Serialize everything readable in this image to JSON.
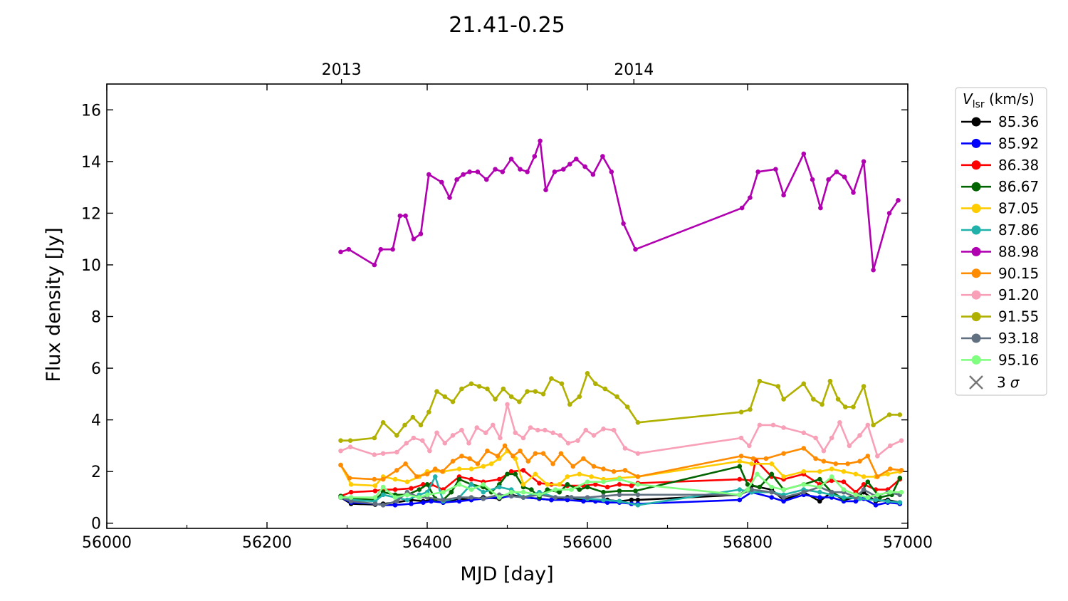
{
  "chart_data": {
    "type": "line",
    "title": "21.41-0.25",
    "xlabel": "MJD [day]",
    "ylabel": "Flux density [Jy]",
    "xlim": [
      56000,
      57000
    ],
    "ylim": [
      -0.2,
      17
    ],
    "xticks": [
      56000,
      56200,
      56400,
      56600,
      56800,
      57000
    ],
    "xticks_minor": [
      56100,
      56300,
      56500,
      56700,
      56900
    ],
    "yticks": [
      0,
      2,
      4,
      6,
      8,
      10,
      12,
      14,
      16
    ],
    "top_axis": {
      "ticks": [
        {
          "label": "2013",
          "x": 56293
        },
        {
          "label": "2014",
          "x": 56658
        }
      ]
    },
    "grid": false,
    "legend": {
      "title": "V_lsr (km/s)",
      "title_main": "V",
      "title_sub": "lsr",
      "title_rest": " (km/s)",
      "placement": "outside-right",
      "marker_label": "3 σ",
      "marker_label_num": "3",
      "marker_label_sym": "σ"
    },
    "series": [
      {
        "name": "85.36",
        "color": "#000000",
        "x": [
          56292,
          56305,
          56335,
          56345,
          56360,
          56380,
          56395,
          56405,
          56420,
          56440,
          56455,
          56470,
          56490,
          56505,
          56520,
          56540,
          56555,
          56575,
          56595,
          56610,
          56625,
          56640,
          56655,
          56663,
          56790,
          56805,
          56830,
          56845,
          56870,
          56890,
          56905,
          56920,
          56935,
          56945,
          56960,
          56975,
          56990
        ],
        "y": [
          1.0,
          0.75,
          0.72,
          0.75,
          0.8,
          0.9,
          0.85,
          0.9,
          0.8,
          0.95,
          0.9,
          1.0,
          0.95,
          1.1,
          1.0,
          0.95,
          0.9,
          1.0,
          0.9,
          0.85,
          0.9,
          0.85,
          0.9,
          0.9,
          1.1,
          1.45,
          1.3,
          0.9,
          1.2,
          0.85,
          1.2,
          0.9,
          1.0,
          1.2,
          0.85,
          0.9,
          0.8
        ]
      },
      {
        "name": "85.92",
        "color": "#0000ff",
        "x": [
          56292,
          56305,
          56335,
          56345,
          56360,
          56380,
          56395,
          56405,
          56420,
          56440,
          56455,
          56470,
          56490,
          56505,
          56520,
          56540,
          56555,
          56575,
          56595,
          56610,
          56625,
          56640,
          56655,
          56663,
          56790,
          56805,
          56830,
          56845,
          56870,
          56890,
          56905,
          56920,
          56935,
          56945,
          56960,
          56975,
          56990
        ],
        "y": [
          1.0,
          0.8,
          0.75,
          0.7,
          0.7,
          0.75,
          0.8,
          0.85,
          0.8,
          0.85,
          0.9,
          0.95,
          1.0,
          1.05,
          1.0,
          0.95,
          0.9,
          0.9,
          0.85,
          0.85,
          0.8,
          0.8,
          0.75,
          0.75,
          0.9,
          1.2,
          1.0,
          0.85,
          1.1,
          1.0,
          1.0,
          0.85,
          0.85,
          0.95,
          0.7,
          0.8,
          0.75
        ]
      },
      {
        "name": "86.38",
        "color": "#ff0000",
        "x": [
          56292,
          56305,
          56335,
          56345,
          56360,
          56380,
          56395,
          56405,
          56420,
          56440,
          56455,
          56470,
          56490,
          56505,
          56520,
          56540,
          56555,
          56575,
          56595,
          56610,
          56625,
          56640,
          56655,
          56663,
          56790,
          56805,
          56810,
          56830,
          56845,
          56870,
          56890,
          56905,
          56920,
          56935,
          56945,
          56960,
          56975,
          56990
        ],
        "y": [
          1.05,
          1.2,
          1.25,
          1.3,
          1.3,
          1.35,
          1.5,
          1.5,
          1.3,
          1.8,
          1.7,
          1.6,
          1.7,
          2.0,
          2.05,
          1.55,
          1.5,
          1.45,
          1.45,
          1.5,
          1.4,
          1.5,
          1.45,
          1.55,
          1.7,
          1.65,
          2.45,
          1.8,
          1.7,
          1.9,
          1.5,
          1.65,
          1.6,
          1.2,
          1.5,
          1.3,
          1.3,
          1.7
        ]
      },
      {
        "name": "86.67",
        "color": "#006400",
        "x": [
          56292,
          56305,
          56335,
          56345,
          56360,
          56375,
          56390,
          56400,
          56410,
          56420,
          56430,
          56440,
          56455,
          56470,
          56480,
          56490,
          56500,
          56510,
          56520,
          56530,
          56540,
          56550,
          56565,
          56575,
          56590,
          56600,
          56620,
          56640,
          56660,
          56790,
          56800,
          56815,
          56830,
          56845,
          56870,
          56890,
          56905,
          56920,
          56940,
          56950,
          56965,
          56980,
          56990
        ],
        "y": [
          1.05,
          0.95,
          0.9,
          1.2,
          1.1,
          1.1,
          1.3,
          1.5,
          0.95,
          0.9,
          1.2,
          1.7,
          1.5,
          1.4,
          1.2,
          1.5,
          1.9,
          1.9,
          1.4,
          1.3,
          1.0,
          1.3,
          1.2,
          1.5,
          1.3,
          1.4,
          1.2,
          1.25,
          1.25,
          2.2,
          1.5,
          1.4,
          1.9,
          1.3,
          1.5,
          1.7,
          1.2,
          0.95,
          1.1,
          1.6,
          1.0,
          1.1,
          1.75
        ]
      },
      {
        "name": "87.05",
        "color": "#ffcc00",
        "x": [
          56292,
          56305,
          56335,
          56345,
          56360,
          56375,
          56390,
          56400,
          56420,
          56440,
          56455,
          56470,
          56480,
          56490,
          56500,
          56510,
          56520,
          56535,
          56550,
          56565,
          56575,
          56590,
          56605,
          56620,
          56640,
          56663,
          56790,
          56805,
          56830,
          56845,
          56870,
          56890,
          56905,
          56920,
          56935,
          56945,
          56960,
          56975,
          56990
        ],
        "y": [
          2.25,
          1.5,
          1.45,
          1.8,
          1.7,
          1.6,
          1.8,
          2.0,
          2.0,
          2.1,
          2.1,
          2.2,
          2.3,
          2.5,
          2.8,
          2.5,
          1.5,
          1.9,
          1.5,
          1.5,
          1.8,
          1.9,
          1.8,
          1.7,
          1.75,
          1.8,
          2.4,
          2.3,
          2.3,
          1.8,
          2.0,
          2.0,
          2.1,
          2.0,
          1.9,
          1.8,
          1.8,
          1.9,
          2.0
        ]
      },
      {
        "name": "87.86",
        "color": "#20b2aa",
        "x": [
          56292,
          56305,
          56335,
          56345,
          56360,
          56375,
          56390,
          56400,
          56410,
          56420,
          56440,
          56455,
          56470,
          56490,
          56505,
          56520,
          56540,
          56560,
          56580,
          56600,
          56620,
          56640,
          56663,
          56790,
          56805,
          56830,
          56845,
          56870,
          56890,
          56905,
          56920,
          56940,
          56960,
          56975,
          56990
        ],
        "y": [
          1.0,
          0.9,
          0.85,
          1.1,
          1.0,
          0.9,
          1.1,
          1.2,
          1.8,
          0.85,
          1.0,
          1.5,
          1.2,
          1.4,
          1.3,
          1.0,
          1.2,
          1.0,
          1.0,
          0.95,
          0.9,
          0.85,
          0.7,
          1.3,
          1.2,
          1.2,
          1.1,
          1.3,
          1.2,
          1.1,
          1.0,
          0.95,
          0.9,
          0.85,
          0.8
        ]
      },
      {
        "name": "88.98",
        "color": "#b000b0",
        "x": [
          56292,
          56302,
          56334,
          56342,
          56357,
          56366,
          56373,
          56383,
          56392,
          56402,
          56418,
          56428,
          56437,
          56445,
          56453,
          56463,
          56474,
          56485,
          56494,
          56505,
          56516,
          56525,
          56534,
          56541,
          56548,
          56559,
          56570,
          56578,
          56586,
          56597,
          56607,
          56619,
          56630,
          56645,
          56660,
          56793,
          56803,
          56813,
          56835,
          56845,
          56870,
          56881,
          56891,
          56901,
          56911,
          56921,
          56932,
          56945,
          56957,
          56977,
          56988
        ],
        "y": [
          10.5,
          10.6,
          10.0,
          10.6,
          10.6,
          11.9,
          11.9,
          11.0,
          11.2,
          13.5,
          13.2,
          12.6,
          13.3,
          13.5,
          13.6,
          13.6,
          13.3,
          13.7,
          13.6,
          14.1,
          13.7,
          13.6,
          14.2,
          14.8,
          12.9,
          13.6,
          13.7,
          13.9,
          14.1,
          13.8,
          13.5,
          14.2,
          13.6,
          11.6,
          10.6,
          12.2,
          12.6,
          13.6,
          13.7,
          12.7,
          14.3,
          13.3,
          12.2,
          13.3,
          13.6,
          13.4,
          12.8,
          14.0,
          9.8,
          12.0,
          12.5
        ]
      },
      {
        "name": "90.15",
        "color": "#ff8c00",
        "x": [
          56292,
          56303,
          56334,
          56345,
          56362,
          56373,
          56387,
          56400,
          56410,
          56419,
          56432,
          56443,
          56453,
          56463,
          56475,
          56488,
          56497,
          56507,
          56516,
          56526,
          56535,
          56545,
          56557,
          56567,
          56582,
          56595,
          56608,
          56620,
          56633,
          56647,
          56663,
          56792,
          56807,
          56823,
          56845,
          56870,
          56885,
          56895,
          56910,
          56925,
          56940,
          56950,
          56962,
          56978,
          56992
        ],
        "y": [
          2.25,
          1.75,
          1.7,
          1.7,
          2.05,
          2.3,
          1.8,
          1.9,
          2.1,
          2.0,
          2.4,
          2.6,
          2.5,
          2.3,
          2.8,
          2.6,
          3.0,
          2.6,
          2.8,
          2.4,
          2.7,
          2.7,
          2.3,
          2.7,
          2.2,
          2.5,
          2.2,
          2.1,
          2.0,
          2.05,
          1.8,
          2.6,
          2.5,
          2.5,
          2.7,
          2.9,
          2.5,
          2.4,
          2.3,
          2.3,
          2.4,
          2.6,
          1.8,
          2.1,
          2.05
        ]
      },
      {
        "name": "91.20",
        "color": "#f8a0b8",
        "x": [
          56292,
          56304,
          56334,
          56345,
          56362,
          56374,
          56383,
          56394,
          56403,
          56412,
          56422,
          56432,
          56443,
          56452,
          56462,
          56473,
          56482,
          56491,
          56500,
          56510,
          56520,
          56529,
          56538,
          56547,
          56557,
          56566,
          56576,
          56588,
          56598,
          56608,
          56620,
          56633,
          56647,
          56663,
          56792,
          56802,
          56815,
          56832,
          56845,
          56870,
          56885,
          56895,
          56905,
          56915,
          56927,
          56940,
          56950,
          56962,
          56978,
          56992
        ],
        "y": [
          2.8,
          2.95,
          2.65,
          2.7,
          2.75,
          3.1,
          3.3,
          3.2,
          2.8,
          3.5,
          3.1,
          3.4,
          3.6,
          3.1,
          3.7,
          3.5,
          3.8,
          3.3,
          4.6,
          3.5,
          3.3,
          3.7,
          3.6,
          3.6,
          3.5,
          3.4,
          3.1,
          3.2,
          3.6,
          3.4,
          3.65,
          3.6,
          2.9,
          2.7,
          3.3,
          3.0,
          3.8,
          3.8,
          3.7,
          3.5,
          3.3,
          2.8,
          3.3,
          3.9,
          3.0,
          3.4,
          3.8,
          2.6,
          3.0,
          3.2
        ]
      },
      {
        "name": "91.55",
        "color": "#b0b000",
        "x": [
          56292,
          56304,
          56334,
          56345,
          56362,
          56372,
          56382,
          56392,
          56402,
          56412,
          56422,
          56432,
          56443,
          56455,
          56465,
          56475,
          56485,
          56495,
          56505,
          56515,
          56525,
          56535,
          56545,
          56555,
          56568,
          56578,
          56590,
          56600,
          56610,
          56622,
          56637,
          56650,
          56663,
          56792,
          56803,
          56815,
          56838,
          56845,
          56870,
          56882,
          56893,
          56903,
          56913,
          56922,
          56932,
          56945,
          56957,
          56977,
          56990
        ],
        "y": [
          3.2,
          3.2,
          3.3,
          3.9,
          3.4,
          3.8,
          4.1,
          3.8,
          4.3,
          5.1,
          4.9,
          4.7,
          5.2,
          5.4,
          5.3,
          5.2,
          4.8,
          5.2,
          4.9,
          4.7,
          5.1,
          5.1,
          5.0,
          5.6,
          5.4,
          4.6,
          4.9,
          5.8,
          5.4,
          5.2,
          4.9,
          4.5,
          3.9,
          4.3,
          4.4,
          5.5,
          5.3,
          4.8,
          5.4,
          4.8,
          4.6,
          5.5,
          4.8,
          4.5,
          4.5,
          5.3,
          3.8,
          4.2,
          4.2
        ]
      },
      {
        "name": "93.18",
        "color": "#607080",
        "x": [
          56292,
          56305,
          56335,
          56345,
          56362,
          56375,
          56390,
          56400,
          56420,
          56440,
          56455,
          56470,
          56490,
          56505,
          56520,
          56540,
          56560,
          56580,
          56600,
          56620,
          56640,
          56663,
          56790,
          56805,
          56830,
          56845,
          56870,
          56890,
          56905,
          56920,
          56935,
          56945,
          56960,
          56975,
          56990
        ],
        "y": [
          1.0,
          0.85,
          0.75,
          0.7,
          0.85,
          1.2,
          1.0,
          1.0,
          0.9,
          1.0,
          1.0,
          0.95,
          1.1,
          1.05,
          1.0,
          1.1,
          1.0,
          1.0,
          1.0,
          1.05,
          1.1,
          1.1,
          1.1,
          1.3,
          1.2,
          1.0,
          1.2,
          1.4,
          1.2,
          1.2,
          1.0,
          1.3,
          1.05,
          1.2,
          1.1
        ]
      },
      {
        "name": "95.16",
        "color": "#80ff80",
        "x": [
          56292,
          56305,
          56335,
          56345,
          56360,
          56375,
          56390,
          56400,
          56420,
          56440,
          56455,
          56470,
          56490,
          56505,
          56520,
          56540,
          56560,
          56580,
          56600,
          56620,
          56640,
          56663,
          56790,
          56800,
          56812,
          56830,
          56845,
          56870,
          56890,
          56905,
          56920,
          56935,
          56950,
          56962,
          56978,
          56992
        ],
        "y": [
          1.0,
          1.0,
          1.0,
          1.4,
          1.0,
          1.1,
          1.0,
          1.1,
          1.2,
          1.5,
          1.3,
          1.5,
          1.0,
          1.2,
          1.2,
          1.1,
          1.3,
          1.3,
          1.6,
          1.6,
          1.7,
          1.5,
          1.1,
          1.3,
          1.9,
          1.4,
          1.3,
          1.5,
          1.4,
          1.8,
          1.3,
          1.1,
          1.0,
          1.1,
          1.2,
          1.2
        ]
      }
    ]
  }
}
